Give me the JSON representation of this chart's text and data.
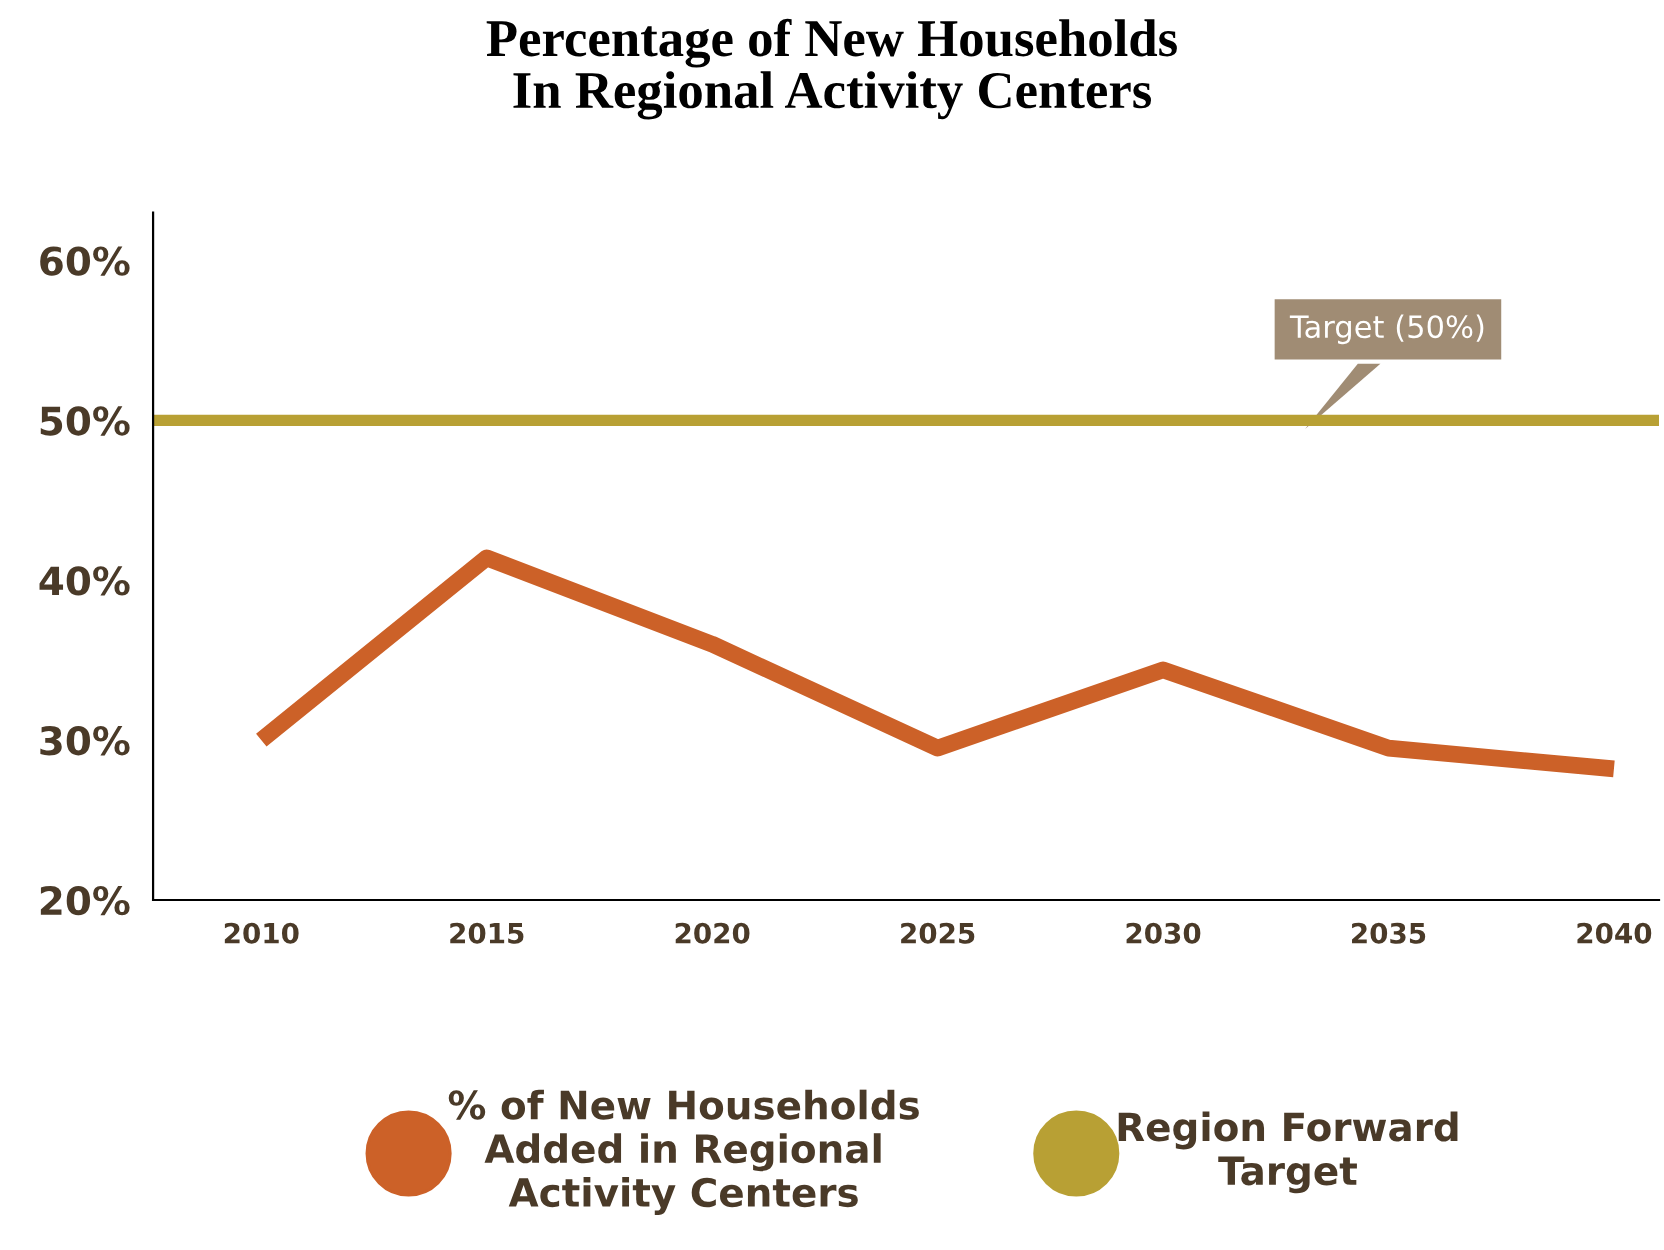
{
  "chart_data": {
    "type": "line",
    "title": "Percentage of New Households\nIn Regional Activity Centers",
    "x": [
      2010,
      2015,
      2020,
      2025,
      2030,
      2035,
      2040
    ],
    "series": [
      {
        "name": "% of New Households\nAdded in Regional\nActivity Centers",
        "color": "#cc6128",
        "values": [
          30,
          41.4,
          36,
          29.5,
          34.4,
          29.5,
          28.2
        ]
      },
      {
        "name": "Region Forward\nTarget",
        "color": "#b8a034",
        "x": [
          2007.6,
          2041
        ],
        "values": [
          50,
          50
        ]
      }
    ],
    "annotations": [
      "Target (50%)"
    ],
    "xlim": [
      2007.6,
      2041
    ],
    "xticks": [
      2010,
      2015,
      2020,
      2025,
      2030,
      2035,
      2040
    ],
    "ylim": [
      20,
      63
    ],
    "yticks": [
      {
        "value": 20,
        "label": "20%"
      },
      {
        "value": 30,
        "label": "30%"
      },
      {
        "value": 40,
        "label": "40%"
      },
      {
        "value": 50,
        "label": "50%"
      },
      {
        "value": 60,
        "label": "60%"
      }
    ],
    "grid": false,
    "legend": "bottom",
    "marker": "none",
    "line_style": "solid"
  }
}
